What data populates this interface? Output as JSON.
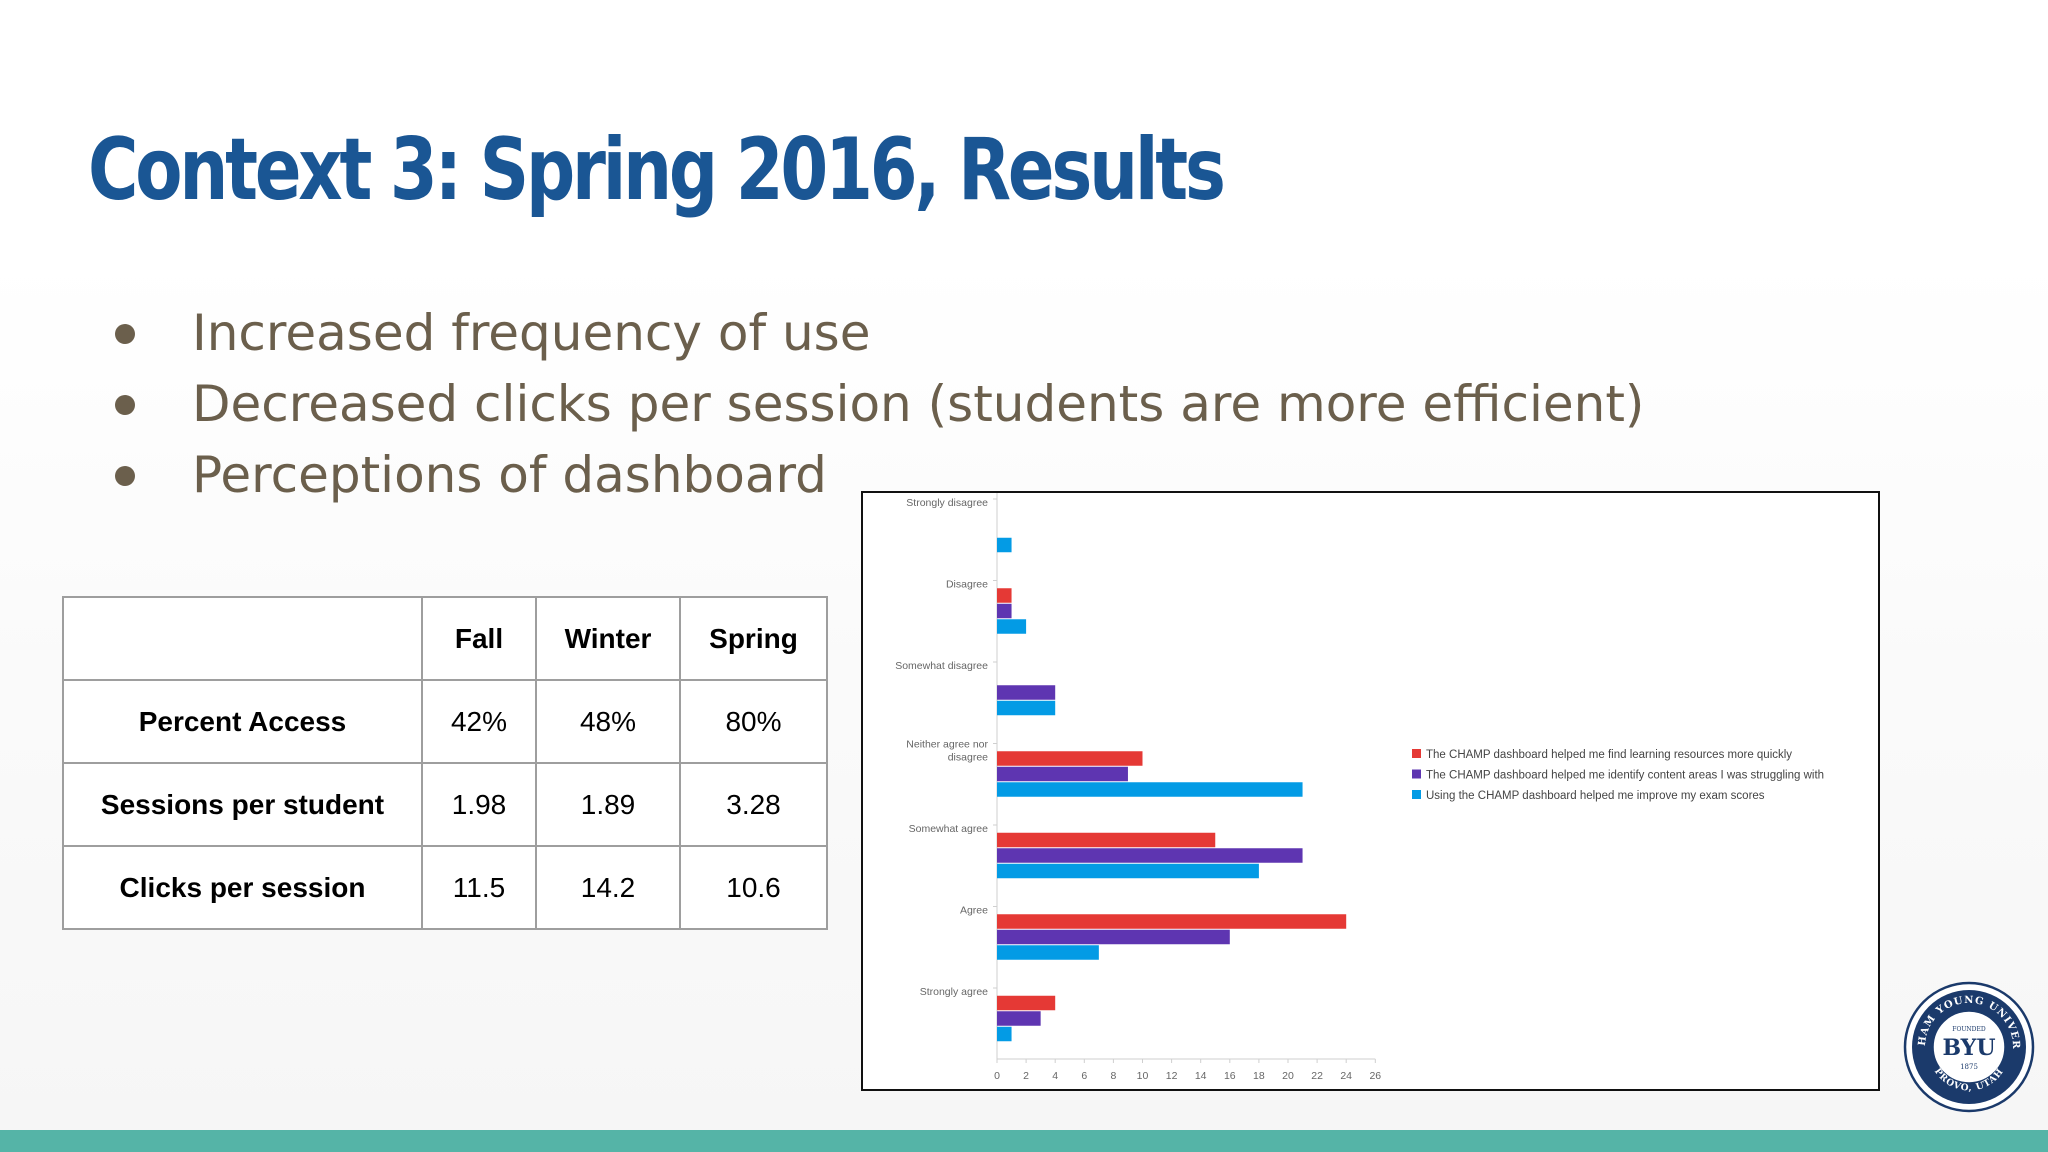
{
  "slide": {
    "title": "Context 3: Spring 2016, Results",
    "bullets": [
      "Increased frequency of use",
      "Decreased clicks per session (students are more efficient)",
      "Perceptions of dashboard"
    ]
  },
  "table": {
    "columns": [
      "",
      "Fall",
      "Winter",
      "Spring"
    ],
    "rows": [
      {
        "label": "Percent Access",
        "values": [
          "42%",
          "48%",
          "80%"
        ]
      },
      {
        "label": "Sessions per student",
        "values": [
          "1.98",
          "1.89",
          "3.28"
        ]
      },
      {
        "label": "Clicks per session",
        "values": [
          "11.5",
          "14.2",
          "10.6"
        ]
      }
    ]
  },
  "logo": {
    "text_top": "BRIGHAM YOUNG UNIVERSITY",
    "text_bottom": "PROVO, UTAH",
    "founded": "FOUNDED",
    "center": "BYU",
    "year": "1875"
  },
  "colors": {
    "title": "#1a5694",
    "bullet_text": "#6b5f4c",
    "footer": "#55b4a7",
    "series": [
      "#e53935",
      "#5e35b1",
      "#039be5"
    ]
  },
  "chart_data": {
    "type": "bar",
    "orientation": "horizontal",
    "categories": [
      "Strongly disagree",
      "Disagree",
      "Somewhat disagree",
      "Neither agree nor disagree",
      "Somewhat agree",
      "Agree",
      "Strongly agree"
    ],
    "category_label_lines": [
      [
        "Strongly disagree"
      ],
      [
        "Disagree"
      ],
      [
        "Somewhat disagree"
      ],
      [
        "Neither agree nor",
        "disagree"
      ],
      [
        "Somewhat agree"
      ],
      [
        "Agree"
      ],
      [
        "Strongly agree"
      ]
    ],
    "series": [
      {
        "name": "The CHAMP dashboard helped me find learning resources more quickly",
        "color": "#e53935",
        "values": [
          0,
          1,
          0,
          10,
          15,
          24,
          4
        ]
      },
      {
        "name": "The CHAMP dashboard helped me identify content areas I was struggling with",
        "color": "#5e35b1",
        "values": [
          0,
          1,
          4,
          9,
          21,
          16,
          3
        ]
      },
      {
        "name": "Using the CHAMP dashboard helped me improve my exam scores",
        "color": "#039be5",
        "values": [
          1,
          2,
          4,
          21,
          18,
          7,
          1
        ]
      }
    ],
    "xlim": [
      0,
      26
    ],
    "xticks": [
      "0",
      "2",
      "4",
      "6",
      "8",
      "10",
      "12",
      "14",
      "16",
      "18",
      "20",
      "22",
      "24",
      "26"
    ],
    "xlabel": "",
    "ylabel": "",
    "grid": false,
    "legend_position": "right"
  }
}
